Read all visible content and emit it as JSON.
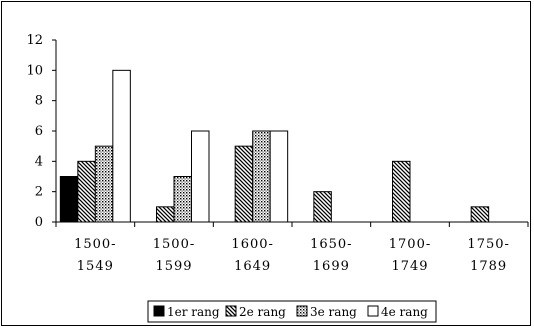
{
  "chart_data": {
    "type": "bar",
    "categories": [
      [
        "1500-",
        "1549"
      ],
      [
        "1500-",
        "1599"
      ],
      [
        "1600-",
        "1649"
      ],
      [
        "1650-",
        "1699"
      ],
      [
        "1700-",
        "1749"
      ],
      [
        "1750-",
        "1789"
      ]
    ],
    "ylim": [
      0,
      12
    ],
    "yticks": [
      "0",
      "2",
      "4",
      "6",
      "8",
      "10",
      "12"
    ],
    "series": [
      {
        "name": "1er rang",
        "pattern": "solid",
        "values": [
          3,
          0,
          0,
          0,
          0,
          0
        ]
      },
      {
        "name": "2e rang",
        "pattern": "diagonal",
        "values": [
          4,
          1,
          5,
          2,
          4,
          1
        ]
      },
      {
        "name": "3e rang",
        "pattern": "dots",
        "values": [
          5,
          3,
          6,
          0,
          0,
          0
        ]
      },
      {
        "name": "4e rang",
        "pattern": "white",
        "values": [
          10,
          6,
          6,
          0,
          0,
          0
        ]
      }
    ],
    "legend_position": "bottom",
    "grid": false
  }
}
